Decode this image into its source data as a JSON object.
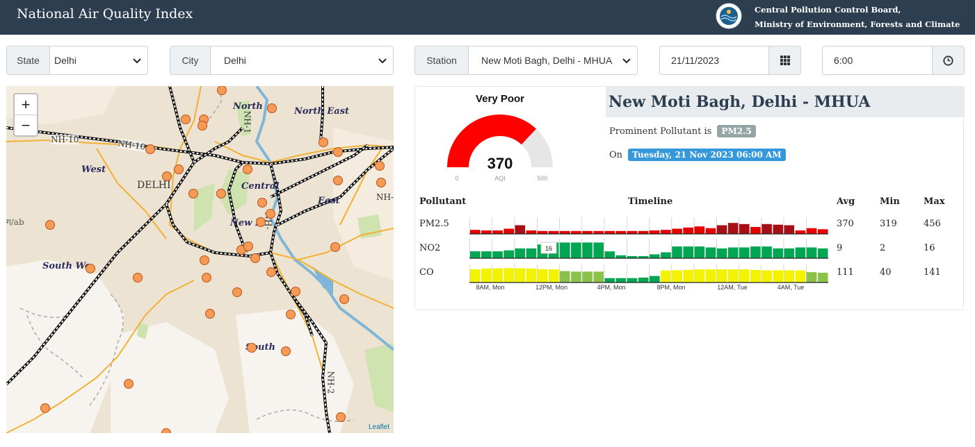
{
  "header": {
    "title": "National Air Quality Index",
    "org_line1": "Central Pollution Control Board,",
    "org_line2": "Ministry of Environment, Forests and Climate Change"
  },
  "filters": {
    "state_label": "State",
    "state_value": "Delhi",
    "city_label": "City",
    "city_value": "Delhi",
    "station_label": "Station",
    "station_value": "New Moti Bagh, Delhi - MHUA",
    "date_value": "21/11/2023",
    "time_value": "6:00"
  },
  "map": {
    "zoom_in": "+",
    "zoom_out": "−",
    "attribution": "Leaflet",
    "labels": {
      "north": "North",
      "north_east": "North East",
      "west": "West",
      "delhi": "DELHI",
      "central": "Central",
      "east": "East",
      "new_delhi": "New D",
      "south_west": "South We",
      "south": "South",
      "nh10a": "NH-10",
      "nh10b": "NH-10",
      "nh1": "NH-1",
      "nh2": "NH-2",
      "nh_east": "NH-",
      "nh_center": "NH-",
      "clip_left": "ग/ab"
    }
  },
  "aqi": {
    "category": "Very Poor",
    "value": "370",
    "value_num": 370,
    "unit": "AQI",
    "scale_min": "0",
    "scale_max": "500",
    "scale_max_num": 500,
    "gauge_color": "#ff0000"
  },
  "station": {
    "name": "New Moti Bagh, Delhi - MHUA",
    "prominent_prefix": "Prominent Pollutant is",
    "prominent": "PM2.5",
    "on_prefix": "On",
    "datetime": "Tuesday, 21 Nov 2023 06:00 AM",
    "badge_gray": "#95a5a6",
    "badge_blue": "#3498db"
  },
  "table": {
    "headers": {
      "pollutant": "Pollutant",
      "timeline": "Timeline",
      "avg": "Avg",
      "min": "Min",
      "max": "Max"
    },
    "rows": [
      {
        "name": "PM2.5",
        "avg": "370",
        "min": "319",
        "max": "456"
      },
      {
        "name": "NO2",
        "avg": "9",
        "min": "2",
        "max": "16"
      },
      {
        "name": "CO",
        "avg": "111",
        "min": "40",
        "max": "141"
      }
    ],
    "time_labels": [
      "8AM, Mon",
      "12PM, Mon",
      "4PM, Mon",
      "8PM, Mon",
      "12AM, Tue",
      "4AM, Tue"
    ],
    "tooltip": "16"
  },
  "timeline_data": {
    "pm25": [
      335,
      330,
      330,
      345,
      375,
      330,
      325,
      325,
      325,
      325,
      325,
      325,
      325,
      325,
      325,
      325,
      330,
      335,
      345,
      355,
      365,
      350,
      375,
      395,
      385,
      360,
      385,
      380,
      375,
      330,
      350,
      340
    ],
    "no2": [
      7,
      7,
      7,
      8,
      10,
      10,
      14,
      16,
      16,
      16,
      16,
      16,
      7,
      3,
      2,
      2,
      4,
      6,
      12,
      12,
      12,
      11,
      10,
      11,
      11,
      12,
      12,
      10,
      10,
      11,
      11,
      10
    ],
    "co": [
      120,
      128,
      130,
      132,
      130,
      128,
      122,
      120,
      105,
      100,
      100,
      100,
      40,
      40,
      40,
      45,
      60,
      110,
      112,
      115,
      120,
      120,
      120,
      120,
      120,
      115,
      112,
      112,
      112,
      111,
      95,
      90
    ],
    "colors": {
      "severe": "#a50f15",
      "very_poor": "#e60000",
      "satisfactory": "#8bc34a",
      "good": "#00a651",
      "moderate": "#f3f300"
    }
  }
}
